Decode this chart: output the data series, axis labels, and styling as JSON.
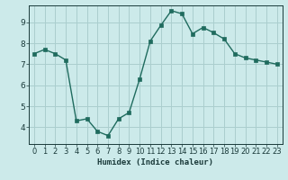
{
  "x": [
    0,
    1,
    2,
    3,
    4,
    5,
    6,
    7,
    8,
    9,
    10,
    11,
    12,
    13,
    14,
    15,
    16,
    17,
    18,
    19,
    20,
    21,
    22,
    23
  ],
  "y": [
    7.5,
    7.7,
    7.5,
    7.2,
    4.3,
    4.4,
    3.8,
    3.6,
    4.4,
    4.7,
    6.3,
    8.1,
    8.85,
    9.55,
    9.4,
    8.45,
    8.75,
    8.5,
    8.2,
    7.5,
    7.3,
    7.2,
    7.1,
    7.0
  ],
  "line_color": "#1f6b5e",
  "bg_color": "#cceaea",
  "grid_color": "#aacece",
  "xlabel": "Humidex (Indice chaleur)",
  "ylim": [
    3.2,
    9.8
  ],
  "xlim": [
    -0.5,
    23.5
  ],
  "yticks": [
    4,
    5,
    6,
    7,
    8,
    9
  ],
  "xticks": [
    0,
    1,
    2,
    3,
    4,
    5,
    6,
    7,
    8,
    9,
    10,
    11,
    12,
    13,
    14,
    15,
    16,
    17,
    18,
    19,
    20,
    21,
    22,
    23
  ],
  "font_color": "#1a3a3a",
  "marker_size": 2.5,
  "line_width": 1.0,
  "tick_fontsize": 6.0,
  "xlabel_fontsize": 6.5
}
